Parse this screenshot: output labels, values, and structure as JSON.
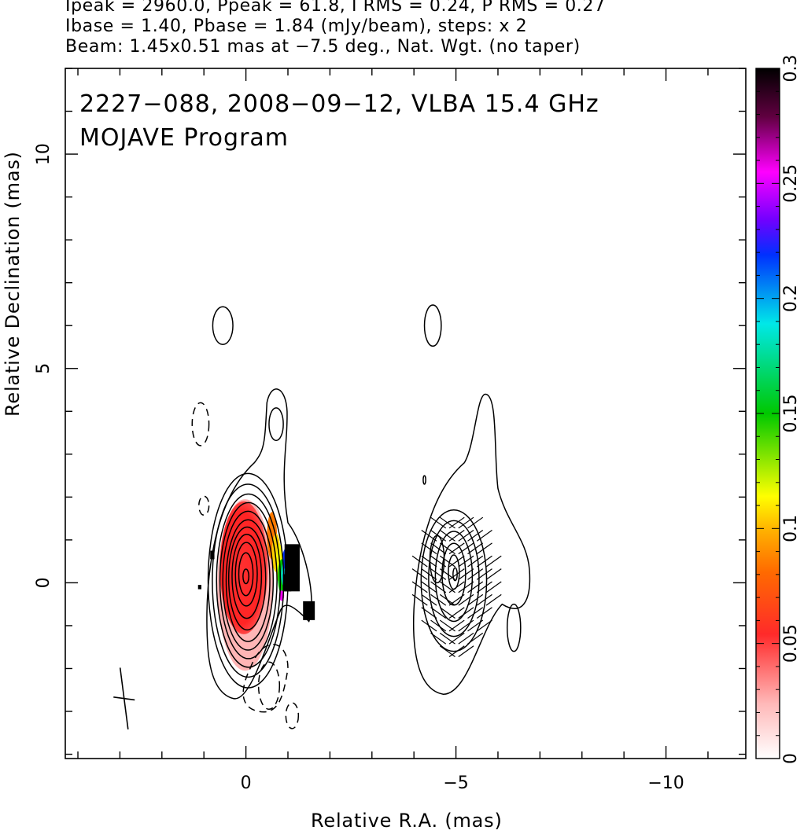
{
  "header": {
    "line1": "Ipeak = 2960.0, Ppeak = 61.8, I RMS = 0.24, P RMS = 0.27",
    "line2": "Ibase = 1.40, Pbase = 1.84 (mJy/beam), steps: x 2",
    "line3": "Beam: 1.45x0.51 mas at −7.5 deg., Nat. Wgt. (no taper)"
  },
  "chart_data": {
    "type": "contour-map",
    "title_line1": "2227−088, 2008−09−12, VLBA 15.4 GHz",
    "title_line2": "MOJAVE Program",
    "xlabel": "Relative R.A. (mas)",
    "ylabel": "Relative Declination (mas)",
    "x_axis_reversed": true,
    "xlim": [
      4.3,
      -11.9
    ],
    "ylim": [
      -4.1,
      12
    ],
    "x_ticks": [
      0,
      -5,
      -10
    ],
    "x_tick_labels": [
      "0",
      "−5",
      "−10"
    ],
    "y_ticks": [
      0,
      5,
      10
    ],
    "y_tick_labels": [
      "0",
      "5",
      "10"
    ],
    "colorbar": {
      "range": [
        0,
        0.3
      ],
      "ticks": [
        0,
        0.05,
        0.1,
        0.15,
        0.2,
        0.25,
        0.3
      ],
      "tick_labels": [
        "0",
        "0.05",
        "0.1",
        "0.15",
        "0.2",
        "0.25",
        "0.3"
      ]
    },
    "panels": [
      {
        "name": "total intensity with fractional polarization",
        "center_x_mas": 0,
        "center_y_mas": 0
      },
      {
        "name": "polarized intensity with EVPA ticks",
        "center_x_mas": -5,
        "center_y_mas": 0
      }
    ],
    "beam": {
      "major_mas": 1.45,
      "minor_mas": 0.51,
      "pa_deg": -7.5
    }
  },
  "colors": {
    "frame": "#000000",
    "colormap": [
      "#ffffff",
      "#ffb0b0",
      "#ff2020",
      "#ff8000",
      "#ffff00",
      "#00d000",
      "#00e0e0",
      "#0040ff",
      "#ff00ff",
      "#400030",
      "#000000"
    ]
  }
}
